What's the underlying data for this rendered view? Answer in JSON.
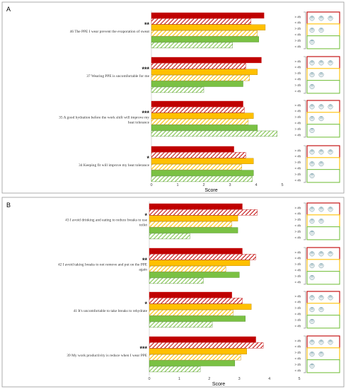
{
  "colors": {
    "red": "#c00000",
    "yellow": "#ffc000",
    "green": "#7ac143",
    "yellow_edge": "#b8860b",
    "green_edge": "#4a8a24"
  },
  "chart_data": [
    {
      "type": "bar",
      "orientation": "horizontal",
      "panel_label": "A",
      "xlabel": "Score",
      "xlim": [
        0,
        5
      ],
      "xticks": [
        "0",
        "1",
        "2",
        "3",
        "4",
        "5"
      ],
      "series": [
        {
          "label": "> 4h",
          "color": "red",
          "pattern": "solid"
        },
        {
          "label": "< 4h",
          "color": "red",
          "pattern": "hatched"
        },
        {
          "label": "> 4h",
          "color": "yellow",
          "pattern": "solid"
        },
        {
          "label": "< 4h",
          "color": "yellow",
          "pattern": "hatched"
        },
        {
          "label": "> 4h",
          "color": "green",
          "pattern": "solid"
        },
        {
          "label": "< 4h",
          "color": "green",
          "pattern": "hatched"
        }
      ],
      "groups": [
        {
          "question": "46 The PPE I wear prevent the evaporation of sweat",
          "significance": "**",
          "values": [
            4.3,
            3.8,
            4.35,
            4.05,
            4.1,
            3.1
          ]
        },
        {
          "question": "37 Wearing PPE is uncomfortable for me",
          "significance": "***",
          "values": [
            4.2,
            3.6,
            4.05,
            3.75,
            3.5,
            2.0
          ]
        },
        {
          "question": "35 A good hydration before the work shift will improve my heat tolerance",
          "significance": "***",
          "values": [
            3.5,
            3.55,
            3.9,
            3.7,
            4.05,
            4.8
          ]
        },
        {
          "question": "34 Keeping fit will improve my heat tolerance",
          "significance": "*",
          "values": [
            3.15,
            3.6,
            3.9,
            3.45,
            3.9,
            3.85
          ]
        }
      ]
    },
    {
      "type": "bar",
      "orientation": "horizontal",
      "panel_label": "B",
      "xlabel": "Score",
      "xlim": [
        0,
        5
      ],
      "xticks": [
        "0",
        "1",
        "2",
        "3",
        "4",
        "5"
      ],
      "series": [
        {
          "label": "> 4h",
          "color": "red",
          "pattern": "solid"
        },
        {
          "label": "< 4h",
          "color": "red",
          "pattern": "hatched"
        },
        {
          "label": "> 4h",
          "color": "yellow",
          "pattern": "solid"
        },
        {
          "label": "< 4h",
          "color": "yellow",
          "pattern": "hatched"
        },
        {
          "label": "> 4h",
          "color": "green",
          "pattern": "solid"
        },
        {
          "label": "< 4h",
          "color": "green",
          "pattern": "hatched"
        }
      ],
      "groups": [
        {
          "question": "43 I avoid drinking and eating to reduce breaks to use toilet",
          "significance": "*",
          "values": [
            3.1,
            3.6,
            2.95,
            2.75,
            2.95,
            1.35
          ]
        },
        {
          "question": "42 I avoid taking breaks to not remove and put on the PPE again",
          "significance": "**",
          "values": [
            3.1,
            3.55,
            3.35,
            2.55,
            3.0,
            1.8
          ]
        },
        {
          "question": "41 It's uncomfortable to take breaks to rehydrate",
          "significance": "*",
          "values": [
            2.75,
            3.1,
            3.4,
            2.8,
            3.2,
            2.1
          ]
        },
        {
          "question": "39 My work productivity is reduce when I wear PPE",
          "significance": "***",
          "values": [
            3.55,
            3.8,
            3.25,
            3.05,
            2.85,
            1.7
          ]
        }
      ]
    }
  ]
}
